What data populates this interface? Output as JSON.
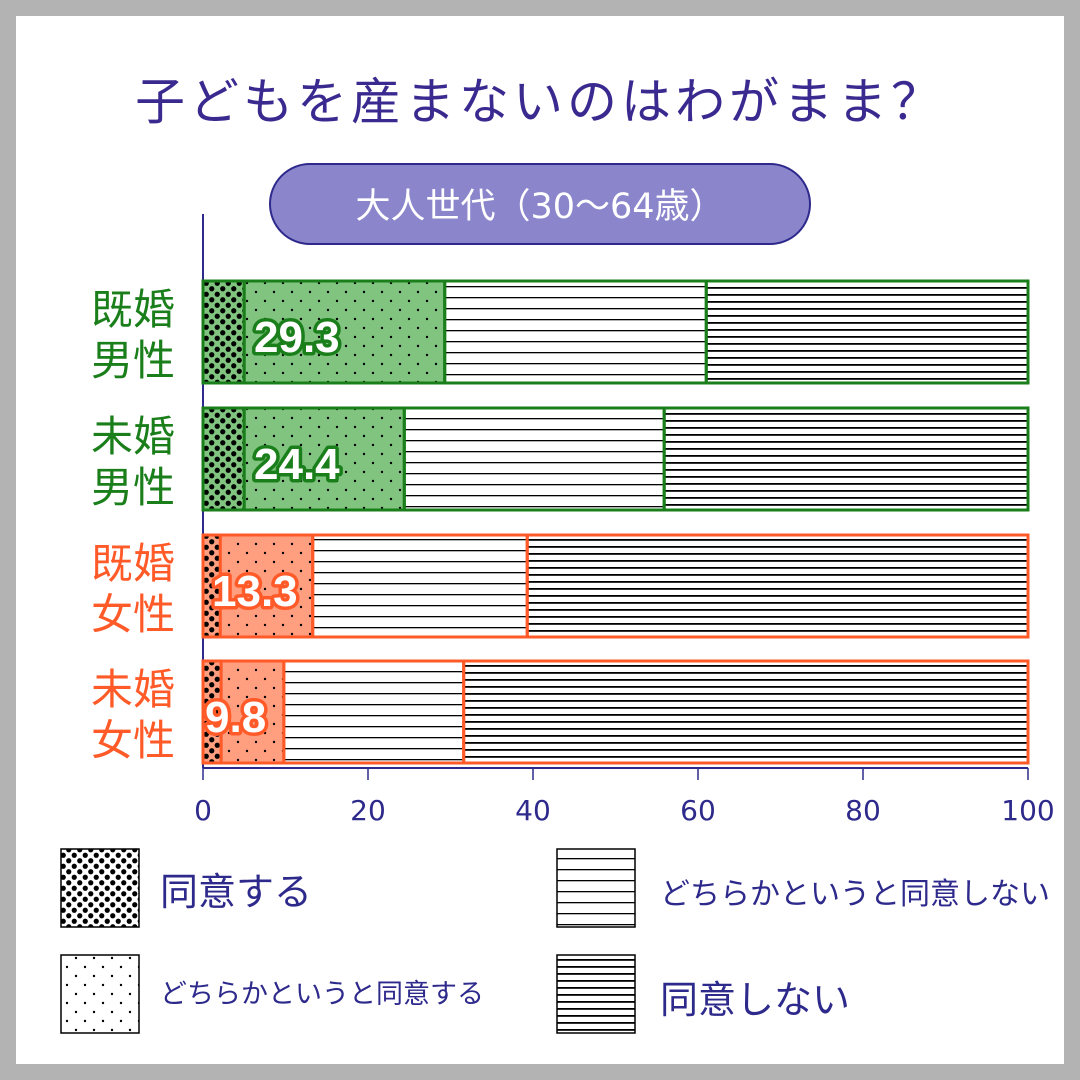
{
  "title": "子どもを産まないのはわがまま？",
  "colors": {
    "navy": "#2e2a8c",
    "pill_fill": "#8b86cc",
    "green_border": "#1a7f1a",
    "green_fill": "#80c480",
    "orange_border": "#ff5a28",
    "orange_fill": "#ff9f80"
  },
  "chart_data": {
    "type": "bar",
    "orientation": "horizontal",
    "stacked": true,
    "subtitle": "大人世代（30〜64歳）",
    "xlim": [
      0,
      100
    ],
    "x_ticks": [
      "0",
      "20",
      "40",
      "60",
      "80",
      "100"
    ],
    "grid": false,
    "legend_position": "bottom",
    "categories": [
      {
        "line1": "既婚",
        "line2": "男性",
        "group": "green",
        "label": "29.3"
      },
      {
        "line1": "未婚",
        "line2": "男性",
        "group": "green",
        "label": "24.4"
      },
      {
        "line1": "既婚",
        "line2": "女性",
        "group": "orange",
        "label": "13.3"
      },
      {
        "line1": "未婚",
        "line2": "女性",
        "group": "orange",
        "label": "9.8"
      }
    ],
    "series": [
      {
        "name": "同意する",
        "pattern": "dense-dots",
        "values": [
          5.0,
          5.0,
          2.1,
          2.2
        ]
      },
      {
        "name": "どちらかというと同意する",
        "pattern": "sparse-dots",
        "values": [
          24.3,
          19.4,
          11.2,
          7.6
        ]
      },
      {
        "name": "どちらかというと同意しない",
        "pattern": "wide-lines",
        "values": [
          31.7,
          31.5,
          26.0,
          21.8
        ]
      },
      {
        "name": "同意しない",
        "pattern": "dense-lines",
        "values": [
          39.0,
          44.1,
          60.7,
          68.4
        ]
      }
    ]
  }
}
